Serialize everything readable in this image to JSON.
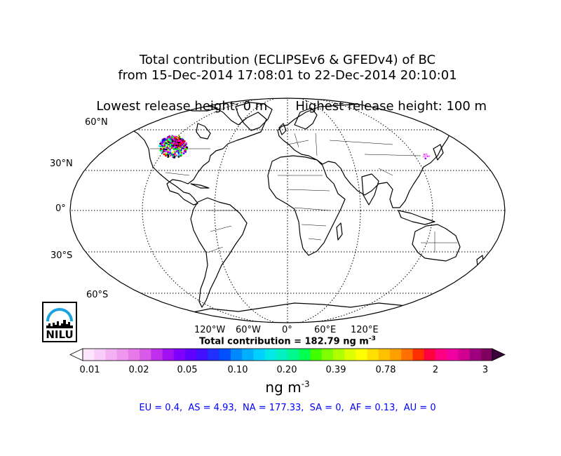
{
  "title": {
    "line1": "Total contribution (ECLIPSEv6 & GFEDv4) of BC",
    "line2": "from 15-Dec-2014 17:08:01 to 22-Dec-2014 20:10:01",
    "line3_left": "Lowest release height: 0 m",
    "line3_right": "Highest release height: 100 m"
  },
  "map": {
    "projection": "robinson",
    "lat_labels": [
      "60°N",
      "30°N",
      "0°",
      "30°S",
      "60°S"
    ],
    "lon_labels": [
      "120°W",
      "60°W",
      "0°",
      "60°E",
      "120°E"
    ],
    "plume_colors": [
      "#ff00ff",
      "#0000ff",
      "#00ffff",
      "#00ff00",
      "#ffff00",
      "#ff0000",
      "#8000ff",
      "#000000"
    ]
  },
  "total_contribution": {
    "prefix": "Total contribution = 182.79 ng m",
    "exponent": "-3"
  },
  "colorbar": {
    "ticks": [
      "0.01",
      "0.02",
      "0.05",
      "0.10",
      "0.20",
      "0.39",
      "0.78",
      "2",
      "3"
    ],
    "colors": [
      "#fde4fd",
      "#f9cdf9",
      "#f3b1f3",
      "#ee97ee",
      "#e879e8",
      "#d959e8",
      "#c030ec",
      "#a010f0",
      "#8000ff",
      "#6000ff",
      "#4010ff",
      "#2030ff",
      "#0050ff",
      "#0088ff",
      "#00b0ff",
      "#00d0ff",
      "#00e8e8",
      "#00f0c0",
      "#00f890",
      "#00ff50",
      "#40ff00",
      "#80ff00",
      "#b0ff00",
      "#ddff00",
      "#ffff00",
      "#ffe000",
      "#ffc000",
      "#ffa000",
      "#ff7000",
      "#ff3000",
      "#ff0040",
      "#ff0080",
      "#f000a0",
      "#d00090",
      "#a00080",
      "#800060"
    ],
    "unit_base": "ng m",
    "unit_exponent": "-3"
  },
  "regions_text": "EU = 0.4,  AS = 4.93,  NA = 177.33,  SA = 0,  AF = 0.13,  AU = 0",
  "logo": {
    "text": "NILU",
    "accent": "#1aa3e0"
  }
}
